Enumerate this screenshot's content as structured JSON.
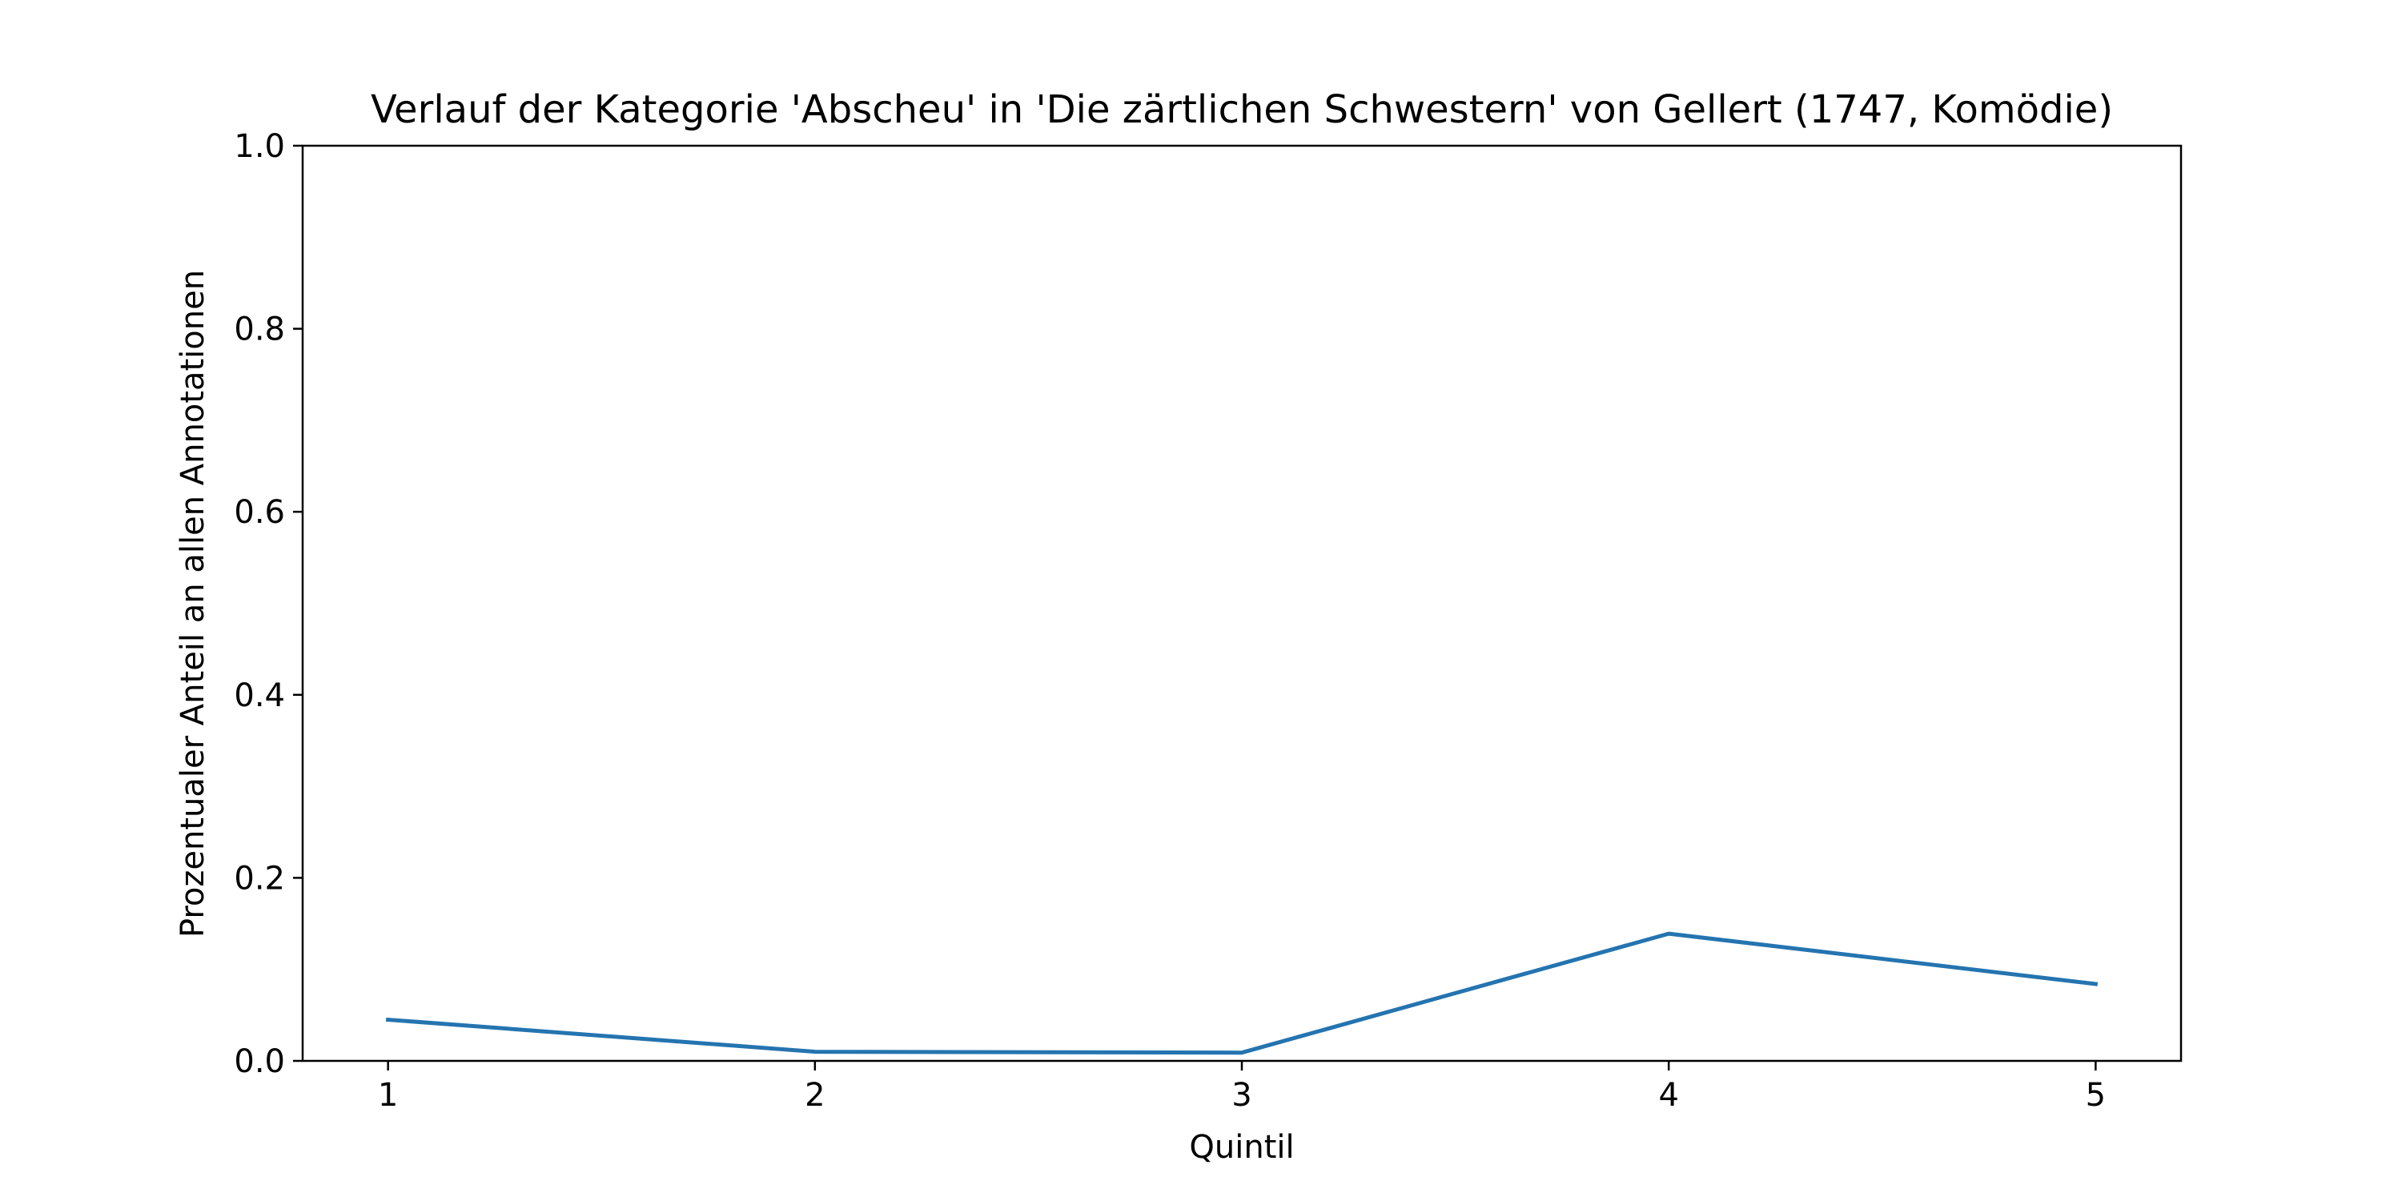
{
  "chart_data": {
    "type": "line",
    "title": "Verlauf der Kategorie 'Abscheu' in 'Die zärtlichen Schwestern' von Gellert (1747, Komödie)",
    "xlabel": "Quintil",
    "ylabel": "Prozentualer Anteil an allen Annotationen",
    "x": [
      1,
      2,
      3,
      4,
      5
    ],
    "x_tick_labels": [
      "1",
      "2",
      "3",
      "4",
      "5"
    ],
    "y_ticks": [
      0.0,
      0.2,
      0.4,
      0.6,
      0.8,
      1.0
    ],
    "y_tick_labels": [
      "0.0",
      "0.2",
      "0.4",
      "0.6",
      "0.8",
      "1.0"
    ],
    "ylim": [
      0,
      1
    ],
    "xlim": [
      0.8,
      5.2
    ],
    "grid": false,
    "series": [
      {
        "values": [
          0.045,
          0.01,
          0.009,
          0.139,
          0.084
        ],
        "color": "#2474b0"
      }
    ]
  }
}
